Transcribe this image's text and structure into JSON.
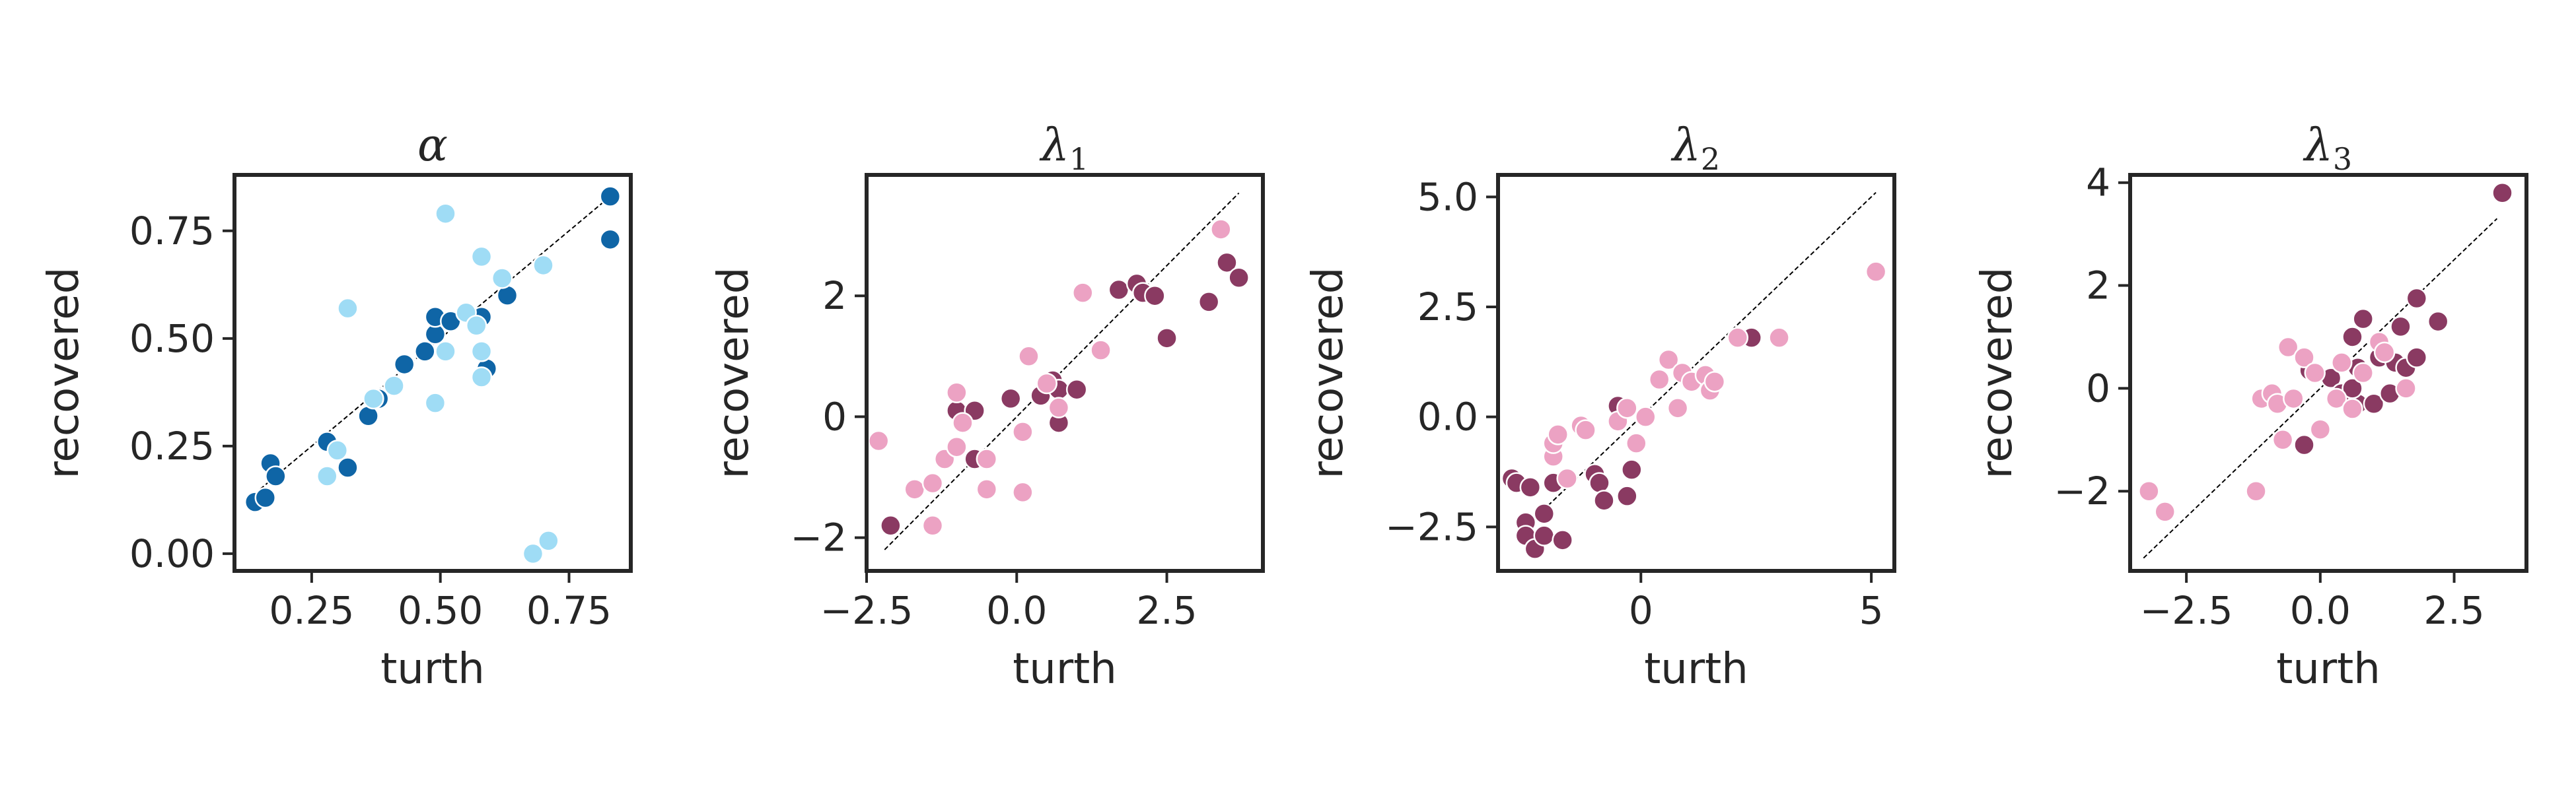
{
  "colors": {
    "alpha_dark": "#0f65a6",
    "alpha_light": "#9fdcf5",
    "lambda_dark": "#8a3a62",
    "lambda_light": "#eca2c3",
    "axis": "#262626"
  },
  "chart_data": [
    {
      "type": "scatter",
      "title": "α",
      "subscript": "",
      "xlabel": "turth",
      "ylabel": "recovered",
      "xlim": [
        0.1,
        0.87
      ],
      "ylim": [
        -0.04,
        0.88
      ],
      "xticks": [
        0.25,
        0.5,
        0.75
      ],
      "yticks": [
        0.0,
        0.25,
        0.5,
        0.75
      ],
      "xtick_labels": [
        "0.25",
        "0.50",
        "0.75"
      ],
      "ytick_labels": [
        "0.00",
        "0.25",
        "0.50",
        "0.75"
      ],
      "identity_line": [
        0.15,
        0.83
      ],
      "grid": false,
      "series": [
        {
          "color_key": "alpha_dark",
          "points": [
            [
              0.14,
              0.12
            ],
            [
              0.16,
              0.13
            ],
            [
              0.17,
              0.21
            ],
            [
              0.18,
              0.18
            ],
            [
              0.28,
              0.26
            ],
            [
              0.32,
              0.2
            ],
            [
              0.36,
              0.32
            ],
            [
              0.38,
              0.36
            ],
            [
              0.41,
              0.39
            ],
            [
              0.43,
              0.44
            ],
            [
              0.47,
              0.47
            ],
            [
              0.49,
              0.51
            ],
            [
              0.49,
              0.55
            ],
            [
              0.52,
              0.54
            ],
            [
              0.58,
              0.55
            ],
            [
              0.59,
              0.43
            ],
            [
              0.63,
              0.6
            ],
            [
              0.83,
              0.83
            ],
            [
              0.83,
              0.73
            ]
          ]
        },
        {
          "color_key": "alpha_light",
          "points": [
            [
              0.28,
              0.18
            ],
            [
              0.3,
              0.24
            ],
            [
              0.32,
              0.57
            ],
            [
              0.37,
              0.36
            ],
            [
              0.41,
              0.39
            ],
            [
              0.49,
              0.35
            ],
            [
              0.51,
              0.79
            ],
            [
              0.51,
              0.47
            ],
            [
              0.55,
              0.56
            ],
            [
              0.57,
              0.53
            ],
            [
              0.58,
              0.47
            ],
            [
              0.58,
              0.41
            ],
            [
              0.58,
              0.69
            ],
            [
              0.62,
              0.64
            ],
            [
              0.68,
              0.0
            ],
            [
              0.7,
              0.67
            ],
            [
              0.71,
              0.03
            ]
          ]
        }
      ]
    },
    {
      "type": "scatter",
      "title": "λ",
      "subscript": "1",
      "xlabel": "turth",
      "ylabel": "recovered",
      "xlim": [
        -2.5,
        4.1
      ],
      "ylim": [
        -2.55,
        4.0
      ],
      "xticks": [
        -2.5,
        0.0,
        2.5
      ],
      "yticks": [
        -2,
        0,
        2
      ],
      "xtick_labels": [
        "−2.5",
        "0.0",
        "2.5"
      ],
      "ytick_labels": [
        "−2",
        "0",
        "2"
      ],
      "identity_line": [
        -2.2,
        3.7
      ],
      "grid": false,
      "series": [
        {
          "color_key": "lambda_dark",
          "points": [
            [
              -2.1,
              -1.8
            ],
            [
              -1.0,
              0.1
            ],
            [
              -0.7,
              0.1
            ],
            [
              -0.7,
              -0.7
            ],
            [
              -0.1,
              0.3
            ],
            [
              0.4,
              0.35
            ],
            [
              0.6,
              0.6
            ],
            [
              0.7,
              0.45
            ],
            [
              0.7,
              -0.1
            ],
            [
              1.0,
              0.45
            ],
            [
              1.7,
              2.1
            ],
            [
              2.0,
              2.2
            ],
            [
              2.1,
              2.05
            ],
            [
              2.3,
              2.0
            ],
            [
              2.5,
              1.3
            ],
            [
              3.2,
              1.9
            ],
            [
              3.5,
              2.55
            ],
            [
              3.7,
              2.3
            ]
          ]
        },
        {
          "color_key": "lambda_light",
          "points": [
            [
              -2.3,
              -0.4
            ],
            [
              -1.7,
              -1.2
            ],
            [
              -1.4,
              -1.8
            ],
            [
              -1.4,
              -1.1
            ],
            [
              -1.2,
              -0.7
            ],
            [
              -1.0,
              0.4
            ],
            [
              -1.0,
              -0.5
            ],
            [
              -0.9,
              -0.1
            ],
            [
              -0.5,
              -0.7
            ],
            [
              -0.5,
              -1.2
            ],
            [
              0.1,
              -1.25
            ],
            [
              0.1,
              -0.25
            ],
            [
              0.2,
              1.0
            ],
            [
              0.5,
              0.55
            ],
            [
              0.7,
              0.15
            ],
            [
              1.1,
              2.05
            ],
            [
              1.4,
              1.1
            ],
            [
              3.4,
              3.1
            ]
          ]
        }
      ]
    },
    {
      "type": "scatter",
      "title": "λ",
      "subscript": "2",
      "xlabel": "turth",
      "ylabel": "recovered",
      "xlim": [
        -3.1,
        5.5
      ],
      "ylim": [
        -3.5,
        5.5
      ],
      "xticks": [
        0,
        5
      ],
      "yticks": [
        -2.5,
        0.0,
        2.5,
        5.0
      ],
      "xtick_labels": [
        "0",
        "5"
      ],
      "ytick_labels": [
        "−2.5",
        "0.0",
        "2.5",
        "5.0"
      ],
      "identity_line": [
        -2.7,
        5.1
      ],
      "grid": false,
      "series": [
        {
          "color_key": "lambda_dark",
          "points": [
            [
              -2.8,
              -1.4
            ],
            [
              -2.7,
              -1.5
            ],
            [
              -2.5,
              -2.4
            ],
            [
              -2.5,
              -2.7
            ],
            [
              -2.4,
              -1.6
            ],
            [
              -2.3,
              -3.0
            ],
            [
              -2.1,
              -2.7
            ],
            [
              -2.1,
              -2.2
            ],
            [
              -1.9,
              -1.5
            ],
            [
              -1.7,
              -2.8
            ],
            [
              -1.0,
              -1.3
            ],
            [
              -0.9,
              -1.5
            ],
            [
              -0.8,
              -1.9
            ],
            [
              -0.5,
              0.25
            ],
            [
              -0.3,
              -1.8
            ],
            [
              -0.2,
              -1.2
            ],
            [
              2.4,
              1.8
            ]
          ]
        },
        {
          "color_key": "lambda_light",
          "points": [
            [
              -1.9,
              -0.9
            ],
            [
              -1.9,
              -0.6
            ],
            [
              -1.8,
              -0.4
            ],
            [
              -1.6,
              -1.4
            ],
            [
              -1.3,
              -0.2
            ],
            [
              -1.2,
              -0.3
            ],
            [
              -0.5,
              -0.1
            ],
            [
              -0.3,
              0.2
            ],
            [
              -0.1,
              -0.6
            ],
            [
              0.1,
              0.0
            ],
            [
              0.4,
              0.85
            ],
            [
              0.6,
              1.3
            ],
            [
              0.8,
              0.2
            ],
            [
              0.9,
              1.0
            ],
            [
              1.1,
              0.8
            ],
            [
              1.4,
              0.95
            ],
            [
              1.5,
              0.6
            ],
            [
              1.6,
              0.8
            ],
            [
              2.1,
              1.8
            ],
            [
              3.0,
              1.8
            ],
            [
              5.1,
              3.3
            ]
          ]
        }
      ]
    },
    {
      "type": "scatter",
      "title": "λ",
      "subscript": "3",
      "xlabel": "turth",
      "ylabel": "recovered",
      "xlim": [
        -3.55,
        3.85
      ],
      "ylim": [
        -3.55,
        4.15
      ],
      "xticks": [
        -2.5,
        0.0,
        2.5
      ],
      "yticks": [
        -2,
        0,
        2,
        4
      ],
      "xtick_labels": [
        "−2.5",
        "0.0",
        "2.5"
      ],
      "ytick_labels": [
        "−2",
        "0",
        "2",
        "4"
      ],
      "identity_line": [
        -3.3,
        3.3
      ],
      "grid": false,
      "series": [
        {
          "color_key": "lambda_dark",
          "points": [
            [
              -0.2,
              0.35
            ],
            [
              0.2,
              0.2
            ],
            [
              0.4,
              -0.1
            ],
            [
              0.6,
              1.0
            ],
            [
              0.7,
              0.4
            ],
            [
              0.7,
              -0.3
            ],
            [
              0.8,
              1.35
            ],
            [
              1.0,
              -0.3
            ],
            [
              1.1,
              0.6
            ],
            [
              1.3,
              -0.1
            ],
            [
              1.4,
              0.5
            ],
            [
              1.5,
              1.2
            ],
            [
              1.6,
              0.4
            ],
            [
              1.8,
              0.6
            ],
            [
              1.8,
              1.75
            ],
            [
              2.2,
              1.3
            ],
            [
              3.4,
              3.8
            ],
            [
              -0.3,
              -1.1
            ],
            [
              0.6,
              0.0
            ]
          ]
        },
        {
          "color_key": "lambda_light",
          "points": [
            [
              -3.2,
              -2.0
            ],
            [
              -2.9,
              -2.4
            ],
            [
              -1.2,
              -2.0
            ],
            [
              -1.1,
              -0.2
            ],
            [
              -0.9,
              -0.1
            ],
            [
              -0.8,
              -0.3
            ],
            [
              -0.7,
              -1.0
            ],
            [
              -0.6,
              0.8
            ],
            [
              -0.5,
              -0.2
            ],
            [
              -0.3,
              0.6
            ],
            [
              -0.1,
              0.3
            ],
            [
              0.0,
              -0.8
            ],
            [
              0.3,
              -0.2
            ],
            [
              0.4,
              0.5
            ],
            [
              0.6,
              -0.4
            ],
            [
              0.8,
              0.3
            ],
            [
              1.1,
              0.9
            ],
            [
              1.2,
              0.7
            ],
            [
              1.6,
              0.0
            ]
          ]
        }
      ]
    }
  ]
}
